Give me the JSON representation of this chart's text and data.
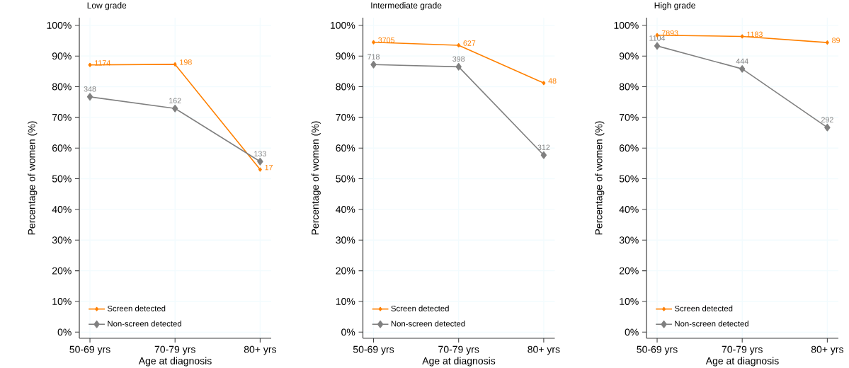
{
  "chart_data": [
    {
      "type": "line",
      "title": "Low grade",
      "xlabel": "Age at diagnosis",
      "ylabel": "Percentage of women (%)",
      "categories": [
        "50-69 yrs",
        "70-79 yrs",
        "80+ yrs"
      ],
      "series": [
        {
          "name": "Screen detected",
          "color": "#ff8000",
          "marker": "diamond",
          "values": [
            87.1,
            87.3,
            53.0
          ]
        },
        {
          "name": "Non-screen detected",
          "color": "#808080",
          "marker": "diamond",
          "values": [
            76.7,
            72.9,
            55.6
          ]
        }
      ],
      "annotations": [
        {
          "text": "1174",
          "x": "50-69 yrs",
          "y": 87.1
        },
        {
          "text": "198",
          "x": "70-79 yrs",
          "y": 87.3
        },
        {
          "text": "17",
          "x": "80+ yrs",
          "y": 53.0
        },
        {
          "text": "348",
          "x": "50-69 yrs",
          "y": 76.7
        },
        {
          "text": "162",
          "x": "70-79 yrs",
          "y": 72.9
        },
        {
          "text": "133",
          "x": "80+ yrs",
          "y": 55.6
        }
      ],
      "ylim": [
        -2,
        102.5
      ],
      "yticks": [
        {
          "value": 0,
          "label": "0%"
        },
        {
          "value": 10,
          "label": "10%"
        },
        {
          "value": 20,
          "label": "20%"
        },
        {
          "value": 30,
          "label": "30%"
        },
        {
          "value": 40,
          "label": "40%"
        },
        {
          "value": 50,
          "label": "50%"
        },
        {
          "value": 60,
          "label": "60%"
        },
        {
          "value": 70,
          "label": "70%"
        },
        {
          "value": 80,
          "label": "80%"
        },
        {
          "value": 90,
          "label": "90%"
        },
        {
          "value": 100,
          "label": "100%"
        }
      ],
      "grid": true,
      "legend": "bottom left",
      "line_style": "solid"
    },
    {
      "type": "line",
      "title": "Intermediate grade",
      "xlabel": "Age at diagnosis",
      "ylabel": "Percentage of women (%)",
      "categories": [
        "50-69 yrs",
        "70-79 yrs",
        "80+ yrs"
      ],
      "series": [
        {
          "name": "Screen detected",
          "color": "#ff8000",
          "marker": "diamond",
          "values": [
            94.5,
            93.5,
            81.2
          ]
        },
        {
          "name": "Non-screen detected",
          "color": "#808080",
          "marker": "diamond",
          "values": [
            87.2,
            86.5,
            57.7
          ]
        }
      ],
      "annotations": [
        {
          "text": "3705",
          "x": "50-69 yrs",
          "y": 94.5
        },
        {
          "text": "627",
          "x": "70-79 yrs",
          "y": 93.5
        },
        {
          "text": "48",
          "x": "80+ yrs",
          "y": 81.2
        },
        {
          "text": "718",
          "x": "50-69 yrs",
          "y": 87.2
        },
        {
          "text": "398",
          "x": "70-79 yrs",
          "y": 86.5
        },
        {
          "text": "312",
          "x": "80+ yrs",
          "y": 57.7
        }
      ],
      "ylim": [
        -2,
        102.5
      ],
      "yticks": [
        {
          "value": 0,
          "label": "0%"
        },
        {
          "value": 10,
          "label": "10%"
        },
        {
          "value": 20,
          "label": "20%"
        },
        {
          "value": 30,
          "label": "30%"
        },
        {
          "value": 40,
          "label": "40%"
        },
        {
          "value": 50,
          "label": "50%"
        },
        {
          "value": 60,
          "label": "60%"
        },
        {
          "value": 70,
          "label": "70%"
        },
        {
          "value": 80,
          "label": "80%"
        },
        {
          "value": 90,
          "label": "90%"
        },
        {
          "value": 100,
          "label": "100%"
        }
      ],
      "grid": true,
      "legend": "bottom left",
      "line_style": "solid"
    },
    {
      "type": "line",
      "title": "High grade",
      "xlabel": "Age at diagnosis",
      "ylabel": "Percentage of women (%)",
      "categories": [
        "50-69 yrs",
        "70-79 yrs",
        "80+ yrs"
      ],
      "series": [
        {
          "name": "Screen detected",
          "color": "#ff8000",
          "marker": "diamond",
          "values": [
            96.8,
            96.4,
            94.4
          ]
        },
        {
          "name": "Non-screen detected",
          "color": "#808080",
          "marker": "diamond",
          "values": [
            93.3,
            85.8,
            66.7
          ]
        }
      ],
      "annotations": [
        {
          "text": "7893",
          "x": "50-69 yrs",
          "y": 96.8
        },
        {
          "text": "1183",
          "x": "70-79 yrs",
          "y": 96.4
        },
        {
          "text": "89",
          "x": "80+ yrs",
          "y": 94.4
        },
        {
          "text": "1104",
          "x": "50-69 yrs",
          "y": 93.3
        },
        {
          "text": "444",
          "x": "70-79 yrs",
          "y": 85.8
        },
        {
          "text": "292",
          "x": "80+ yrs",
          "y": 66.7
        }
      ],
      "ylim": [
        -2,
        102.5
      ],
      "yticks": [
        {
          "value": 0,
          "label": "0%"
        },
        {
          "value": 10,
          "label": "10%"
        },
        {
          "value": 20,
          "label": "20%"
        },
        {
          "value": 30,
          "label": "30%"
        },
        {
          "value": 40,
          "label": "40%"
        },
        {
          "value": 50,
          "label": "50%"
        },
        {
          "value": 60,
          "label": "60%"
        },
        {
          "value": 70,
          "label": "70%"
        },
        {
          "value": 80,
          "label": "80%"
        },
        {
          "value": 90,
          "label": "90%"
        },
        {
          "value": 100,
          "label": "100%"
        }
      ],
      "grid": true,
      "legend": "bottom left",
      "line_style": "solid"
    }
  ]
}
